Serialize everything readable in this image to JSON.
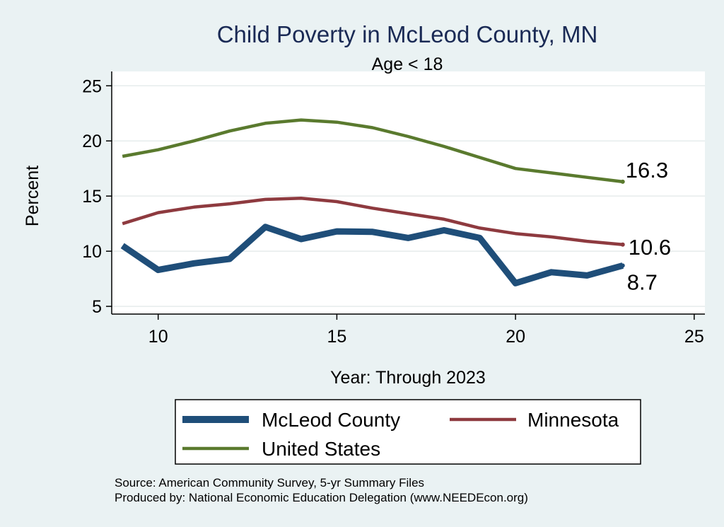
{
  "chart_data": {
    "type": "line",
    "title": "Child Poverty in McLeod County, MN",
    "subtitle": "Age < 18",
    "xlabel": "Year: Through 2023",
    "ylabel": "Percent",
    "xlim": [
      8.7,
      25.3
    ],
    "ylim": [
      4.3,
      26.3
    ],
    "xticks": [
      10,
      15,
      20,
      25
    ],
    "yticks": [
      5,
      10,
      15,
      20,
      25
    ],
    "grid": true,
    "legend_position": "bottom",
    "series": [
      {
        "name": "McLeod County",
        "color": "#1f4e79",
        "width": 9,
        "end_label": "8.7",
        "points": [
          [
            9,
            10.5
          ],
          [
            10,
            8.3
          ],
          [
            11,
            8.9
          ],
          [
            12,
            9.3
          ],
          [
            13,
            12.2
          ],
          [
            14,
            11.1
          ],
          [
            15,
            11.8
          ],
          [
            16,
            11.75
          ],
          [
            17,
            11.2
          ],
          [
            18,
            11.9
          ],
          [
            19,
            11.2
          ],
          [
            20,
            7.1
          ],
          [
            21,
            8.1
          ],
          [
            22,
            7.8
          ],
          [
            23,
            8.7
          ]
        ]
      },
      {
        "name": "Minnesota",
        "color": "#8e3a3f",
        "width": 4.5,
        "end_label": "10.6",
        "points": [
          [
            9,
            12.5
          ],
          [
            10,
            13.5
          ],
          [
            11,
            14.0
          ],
          [
            12,
            14.3
          ],
          [
            13,
            14.7
          ],
          [
            14,
            14.8
          ],
          [
            15,
            14.5
          ],
          [
            16,
            13.9
          ],
          [
            17,
            13.4
          ],
          [
            18,
            12.9
          ],
          [
            19,
            12.1
          ],
          [
            20,
            11.6
          ],
          [
            21,
            11.3
          ],
          [
            22,
            10.9
          ],
          [
            23,
            10.6
          ]
        ]
      },
      {
        "name": "United States",
        "color": "#5a7a2e",
        "width": 4.5,
        "end_label": "16.3",
        "points": [
          [
            9,
            18.6
          ],
          [
            10,
            19.2
          ],
          [
            11,
            20.0
          ],
          [
            12,
            20.9
          ],
          [
            13,
            21.6
          ],
          [
            14,
            21.9
          ],
          [
            15,
            21.7
          ],
          [
            16,
            21.2
          ],
          [
            17,
            20.4
          ],
          [
            18,
            19.5
          ],
          [
            19,
            18.5
          ],
          [
            20,
            17.5
          ],
          [
            21,
            17.1
          ],
          [
            22,
            16.7
          ],
          [
            23,
            16.3
          ]
        ]
      }
    ],
    "notes": [
      "Source: American Community Survey, 5-yr Summary Files",
      "Produced by: National Economic Education Delegation (www.NEEDEcon.org)"
    ]
  }
}
